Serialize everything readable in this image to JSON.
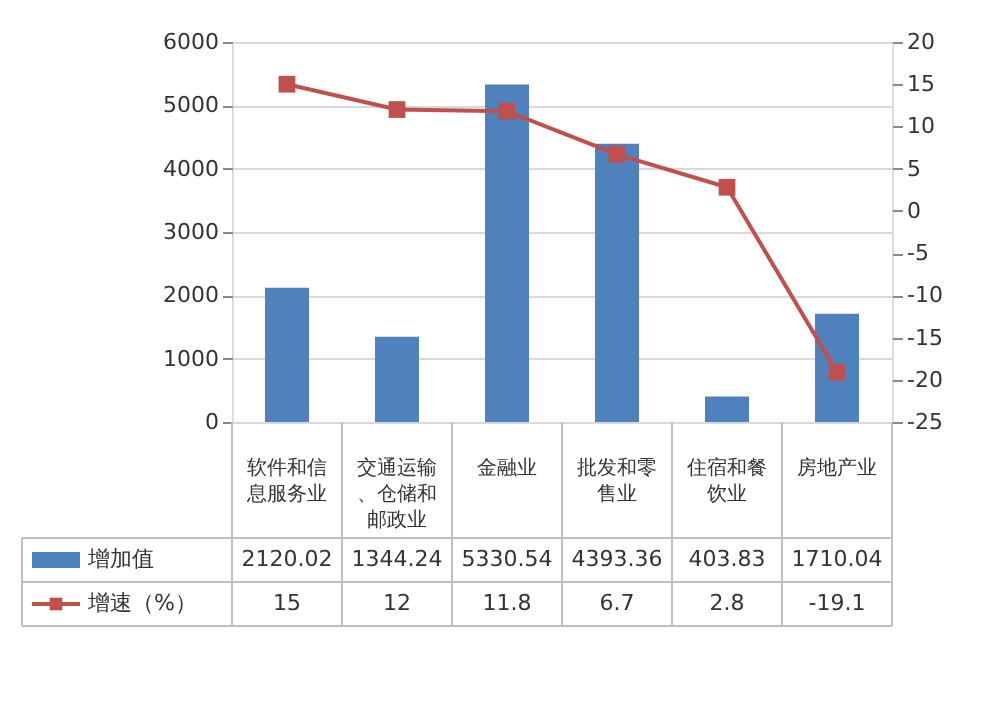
{
  "chart_data": {
    "type": "bar",
    "categories": [
      "软件和信息服务业",
      "交通运输、仓储和邮政业",
      "金融业",
      "批发和零售业",
      "住宿和餐饮业",
      "房地产业"
    ],
    "series": [
      {
        "name": "增加值",
        "color": "#4f81bd",
        "values": [
          2120.02,
          1344.24,
          5330.54,
          4393.36,
          403.83,
          1710.04
        ]
      },
      {
        "name": "增速（%）",
        "type": "line",
        "axis": "y2",
        "color": "#c0504d",
        "values": [
          15,
          12,
          11.8,
          6.7,
          2.8,
          -19.1
        ]
      }
    ],
    "ylim": [
      0,
      6000
    ],
    "yticks": [
      0,
      1000,
      2000,
      3000,
      4000,
      5000,
      6000
    ],
    "y2lim": [
      -25,
      20
    ],
    "y2ticks": [
      -25,
      -20,
      -15,
      -10,
      -5,
      0,
      5,
      10,
      15,
      20
    ],
    "grid": "y",
    "marker": "square",
    "line_style": "solid",
    "data_labels": true,
    "legend": "bottom left"
  }
}
